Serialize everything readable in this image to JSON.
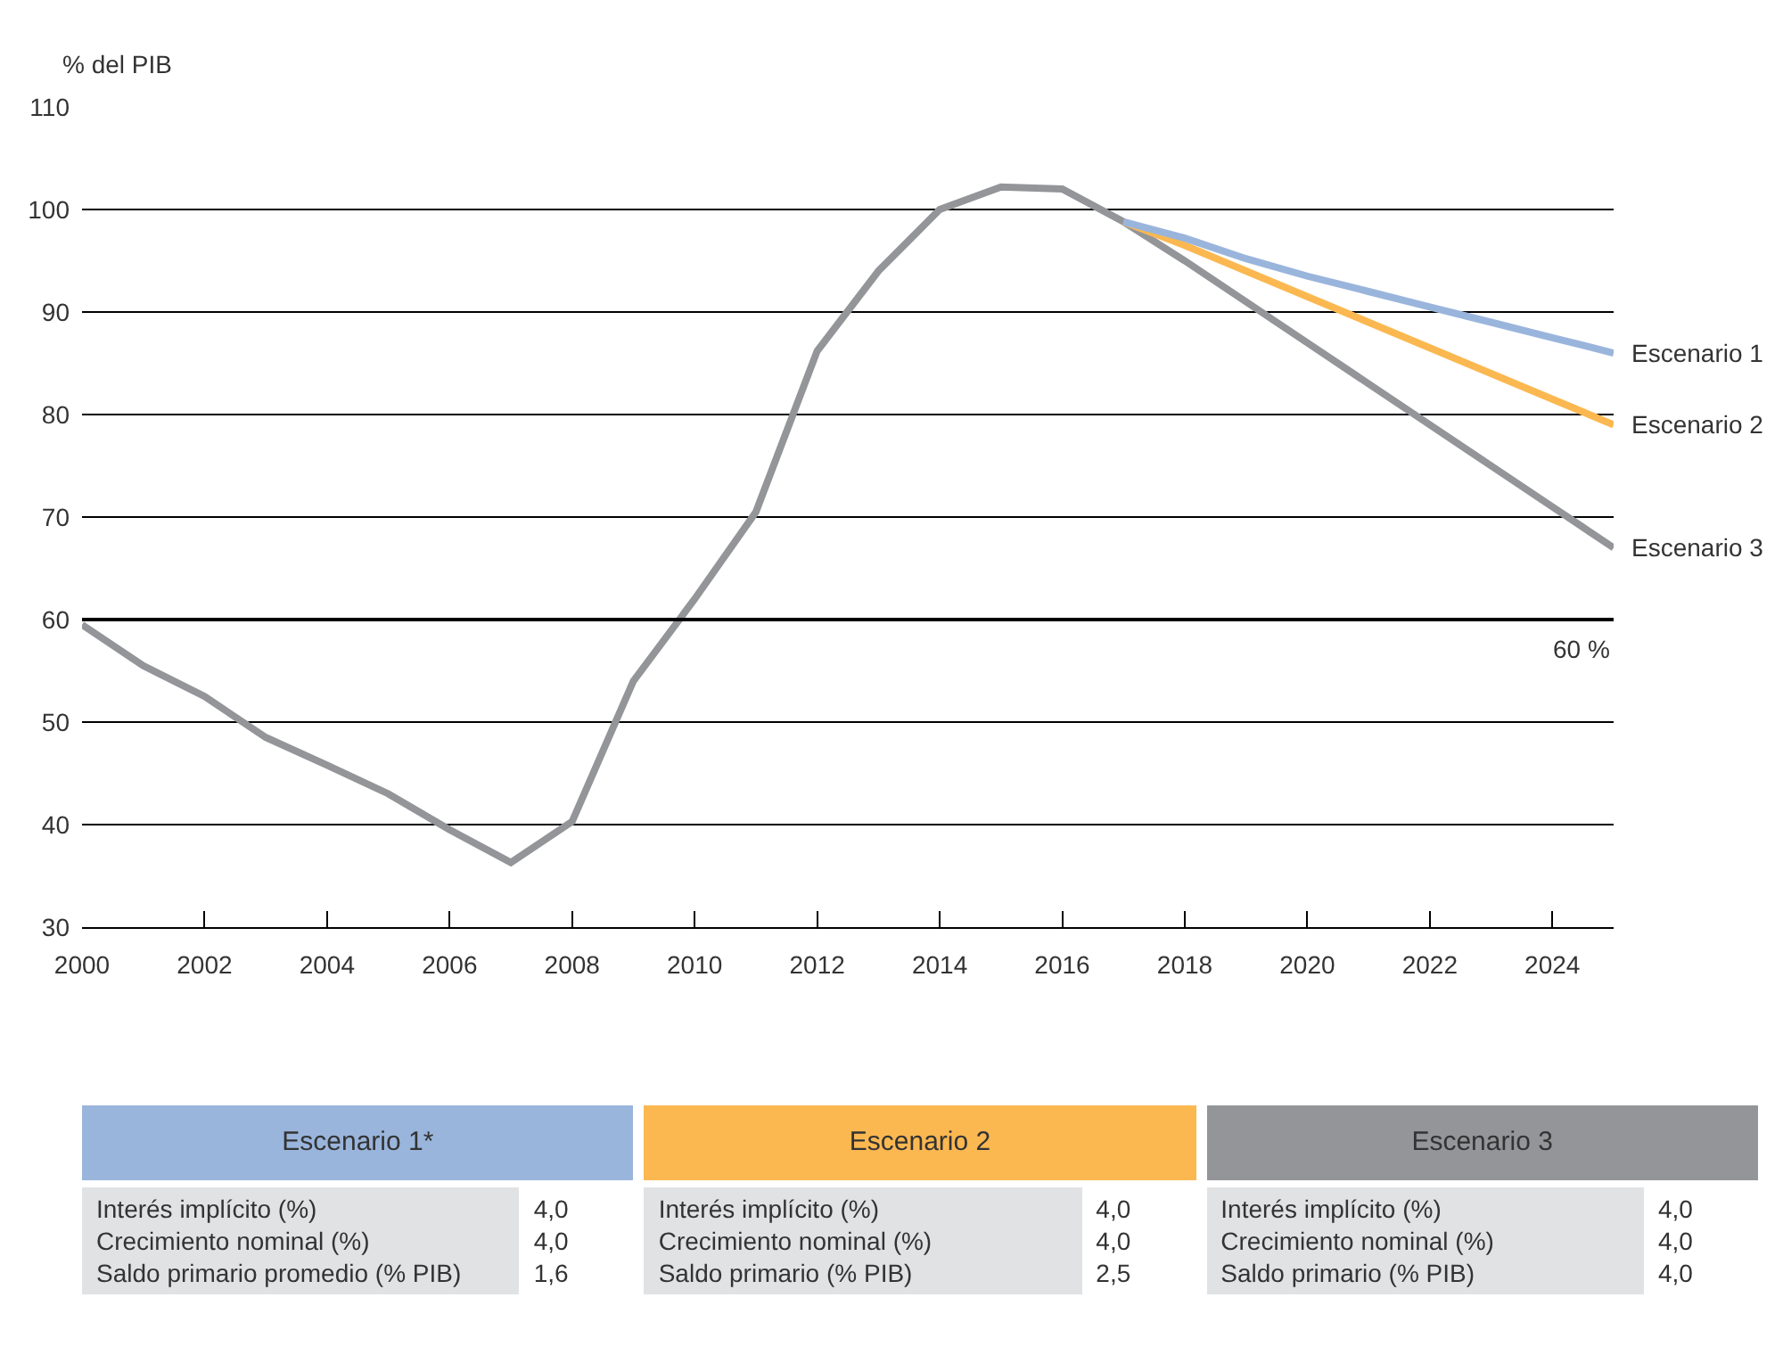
{
  "chart_data": {
    "type": "line",
    "ylabel": "% del PIB",
    "xlim": [
      2000,
      2025
    ],
    "xticks": [
      2000,
      2002,
      2004,
      2006,
      2008,
      2010,
      2012,
      2014,
      2016,
      2018,
      2020,
      2022,
      2024
    ],
    "ylim": [
      30,
      110
    ],
    "yticks": [
      30,
      40,
      50,
      60,
      70,
      80,
      90,
      100,
      110
    ],
    "grid": "y",
    "series": [
      {
        "name": "Escenario 1",
        "color": "#9ab5dc",
        "x": [
          2017,
          2018,
          2019,
          2020,
          2021,
          2022,
          2023,
          2024,
          2025
        ],
        "values": [
          98.8,
          97.2,
          95.2,
          93.5,
          92,
          90.5,
          89,
          87.5,
          86
        ]
      },
      {
        "name": "Escenario 2",
        "color": "#fbb851",
        "x": [
          2017,
          2018,
          2019,
          2020,
          2021,
          2022,
          2023,
          2024,
          2025
        ],
        "values": [
          98.8,
          96.5,
          94,
          91.5,
          89,
          86.5,
          84,
          81.5,
          79
        ]
      },
      {
        "name": "Escenario 3",
        "color": "#939598",
        "x": [
          2000,
          2001,
          2002,
          2003,
          2004,
          2005,
          2006,
          2007,
          2008,
          2009,
          2010,
          2011,
          2012,
          2013,
          2014,
          2015,
          2016,
          2017,
          2018,
          2019,
          2020,
          2021,
          2022,
          2023,
          2024,
          2025
        ],
        "values": [
          59.5,
          55.5,
          52.5,
          48.5,
          45.8,
          43,
          39.5,
          36.3,
          40.3,
          54,
          62,
          70.5,
          86.2,
          94,
          100,
          102.2,
          102,
          98.8,
          95,
          91,
          87,
          83,
          79,
          75,
          71,
          67
        ]
      }
    ],
    "ref_lines": [
      {
        "axis": "y",
        "value": 60,
        "label": "60 %",
        "color": "#000000"
      }
    ],
    "annotations": [
      "Escenario 1*",
      "Interés implícito (%)",
      "4,0",
      "Crecimiento nominal (%)",
      "4,0",
      "Saldo primario promedio (% PIB)",
      "1,6",
      "Escenario 2",
      "Interés implícito (%)",
      "4,0",
      "Crecimiento nominal (%)",
      "4,0",
      "Saldo primario (% PIB)",
      "2,5",
      "Escenario 3",
      "Interés implícito (%)",
      "4,0",
      "Crecimiento nominal (%)",
      "4,0",
      "Saldo primario (% PIB)",
      "4,0"
    ]
  }
}
